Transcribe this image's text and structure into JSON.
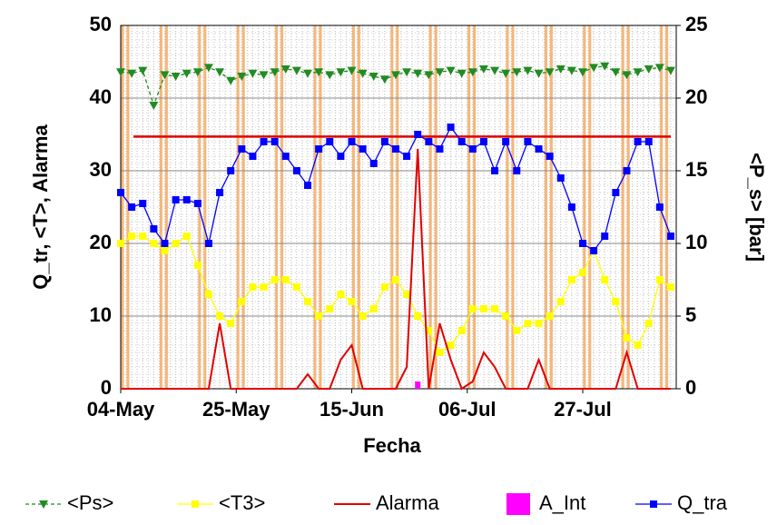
{
  "chart_data": {
    "type": "line",
    "xlabel": "Fecha",
    "ylabel": "Q_tr, <T>,  Alarma",
    "y2label": "<P_s> [bar]",
    "xlim": [
      0,
      101
    ],
    "xticks": [
      {
        "value": 0,
        "label": "04-May"
      },
      {
        "value": 21,
        "label": "25-May"
      },
      {
        "value": 42,
        "label": "15-Jun"
      },
      {
        "value": 63,
        "label": "06-Jul"
      },
      {
        "value": 84,
        "label": "27-Jul"
      }
    ],
    "ylim": [
      0,
      50
    ],
    "yticks": [
      0,
      10,
      20,
      30,
      40,
      50
    ],
    "y2lim": [
      0,
      25
    ],
    "y2ticks": [
      0,
      5,
      10,
      15,
      20,
      25
    ],
    "grid": true,
    "reference_lines": [
      {
        "value": 34.7,
        "color": "#e00000"
      }
    ],
    "x": [
      0,
      2,
      4,
      6,
      8,
      10,
      12,
      14,
      16,
      18,
      20,
      22,
      24,
      26,
      28,
      30,
      32,
      34,
      36,
      38,
      40,
      42,
      44,
      46,
      48,
      50,
      52,
      54,
      56,
      58,
      60,
      62,
      64,
      66,
      68,
      70,
      72,
      74,
      76,
      78,
      80,
      82,
      84,
      86,
      88,
      90,
      92,
      94,
      96,
      98,
      100
    ],
    "series": [
      {
        "name": "<Ps>",
        "color": "#228b22",
        "marker": "triangle",
        "axis": "y2",
        "dashed": true,
        "values": [
          21.8,
          21.7,
          21.9,
          19.5,
          21.6,
          21.5,
          21.7,
          21.8,
          22.1,
          21.8,
          21.2,
          21.5,
          21.7,
          21.6,
          21.8,
          22.0,
          21.9,
          21.7,
          21.8,
          21.6,
          21.8,
          21.9,
          21.7,
          21.5,
          21.3,
          21.6,
          21.8,
          21.7,
          21.6,
          21.8,
          21.9,
          21.7,
          21.8,
          22.0,
          21.9,
          21.7,
          21.8,
          21.9,
          21.7,
          21.8,
          22.0,
          21.9,
          21.8,
          22.1,
          22.2,
          21.8,
          21.6,
          21.8,
          22.0,
          22.1,
          21.9
        ]
      },
      {
        "name": "<T3>",
        "color": "#ffff00",
        "marker": "square",
        "values": [
          20,
          21,
          21,
          20,
          19,
          20,
          21,
          17,
          13,
          10,
          9,
          12,
          14,
          14,
          15,
          15,
          14,
          12,
          10,
          11,
          13,
          12,
          10,
          11,
          14,
          15,
          13,
          10,
          8,
          5,
          6,
          8,
          11,
          11,
          11,
          10,
          8,
          9,
          9,
          10,
          12,
          15,
          16,
          19,
          15,
          12,
          7,
          6,
          9,
          15,
          14
        ]
      },
      {
        "name": "Alarma",
        "color": "#e00000",
        "marker": "none",
        "values": [
          0,
          0,
          0,
          0,
          0,
          0,
          0,
          0,
          0,
          9,
          0,
          0,
          0,
          0,
          0,
          0,
          0,
          2,
          0,
          0,
          4,
          6,
          0,
          0,
          0,
          0,
          3,
          33,
          0,
          9,
          4,
          0,
          1,
          5,
          3,
          0,
          0,
          0,
          4,
          0,
          0,
          0,
          0,
          0,
          0,
          0,
          5,
          0,
          0,
          0,
          0
        ]
      },
      {
        "name": "A_Int",
        "color": "#ff00ff",
        "marker": "bar",
        "values": [
          0,
          0,
          0,
          0,
          0,
          0,
          0,
          0,
          0,
          0,
          0,
          0,
          0,
          0,
          0,
          0,
          0,
          0,
          0,
          0,
          0,
          0,
          0,
          0,
          0,
          0,
          0,
          1,
          0,
          0,
          0,
          0,
          0,
          0,
          0,
          0,
          0,
          0,
          0,
          0,
          0,
          0,
          0,
          0,
          0,
          0,
          0,
          0,
          0,
          0,
          0
        ]
      },
      {
        "name": "Q_tra",
        "color": "#0000ff",
        "marker": "square",
        "values": [
          27,
          25,
          25.5,
          22,
          20,
          26,
          26,
          25.5,
          20,
          27,
          30,
          33,
          32,
          34,
          34,
          32,
          30,
          28,
          33,
          34,
          32,
          34,
          33,
          31,
          34,
          33,
          32,
          35,
          34,
          33,
          36,
          34,
          33,
          34,
          30,
          34,
          30,
          34,
          33,
          32,
          29,
          25,
          20,
          19,
          21,
          27,
          30,
          34,
          34,
          25,
          21
        ]
      }
    ]
  }
}
